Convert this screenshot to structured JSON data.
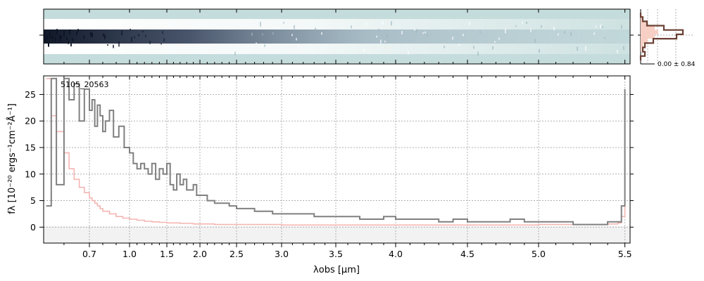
{
  "chart_data": [
    {
      "type": "heatmap",
      "panel": "2D spectrum",
      "description_visible": "dark trace along centre, strongest at blue end, fading to red",
      "colormap": [
        "#ffffff",
        "#c5dcdc",
        "#1c2540"
      ],
      "background": "#c5dcdc"
    },
    {
      "type": "line",
      "panel": "profile",
      "annotation": "0.00 ± 0.84",
      "profile_values": [
        0.0,
        0.05,
        0.15,
        0.55,
        1.0,
        0.85,
        0.3,
        0.1,
        0.05,
        0.1,
        0.0
      ],
      "model_values": [
        0.05,
        0.15,
        0.4,
        0.8,
        1.0,
        0.8,
        0.4,
        0.15,
        0.05,
        0.0,
        0.0
      ]
    },
    {
      "type": "line",
      "panel": "1D spectrum",
      "label": "5105_20563",
      "xlabel": "λobs [μm]",
      "ylabel": "fλ [10⁻²⁰ ergs⁻¹cm⁻²Å⁻¹]",
      "xtick_labels": [
        "0.7",
        "1.0",
        "1.5",
        "2.0",
        "2.5",
        "3.0",
        "3.5",
        "4.0",
        "4.5",
        "5.0",
        "5.5"
      ],
      "ytick_labels": [
        "0",
        "5",
        "10",
        "15",
        "20",
        "25"
      ],
      "yticks": [
        0,
        5,
        10,
        15,
        20,
        25
      ],
      "ylim": [
        -3,
        28.5
      ],
      "xlim": [
        0.52,
        5.53
      ],
      "grid": true,
      "series": [
        {
          "color": "#808080",
          "x": [
            0.53,
            0.55,
            0.57,
            0.6,
            0.62,
            0.64,
            0.66,
            0.68,
            0.7,
            0.72,
            0.74,
            0.76,
            0.78,
            0.8,
            0.82,
            0.85,
            0.88,
            0.92,
            0.96,
            1.0,
            1.05,
            1.1,
            1.15,
            1.2,
            1.25,
            1.3,
            1.35,
            1.4,
            1.45,
            1.5,
            1.55,
            1.6,
            1.65,
            1.7,
            1.75,
            1.8,
            1.85,
            1.9,
            1.95,
            2.0,
            2.1,
            2.2,
            2.3,
            2.4,
            2.5,
            2.6,
            2.7,
            2.8,
            2.9,
            3.0,
            3.1,
            3.2,
            3.3,
            3.4,
            3.5,
            3.6,
            3.7,
            3.8,
            3.9,
            4.0,
            4.1,
            4.2,
            4.3,
            4.4,
            4.5,
            4.6,
            4.7,
            4.8,
            4.9,
            5.0,
            5.1,
            5.2,
            5.3,
            5.4,
            5.46,
            5.48,
            5.5
          ],
          "y": [
            4,
            28,
            8,
            28,
            24,
            27,
            20,
            26,
            22,
            24,
            19,
            23,
            21,
            18,
            20,
            22,
            17,
            19,
            15,
            14,
            12,
            11,
            12,
            11,
            10,
            12,
            9,
            11,
            10,
            12,
            8,
            7,
            10,
            8,
            9,
            7,
            7,
            8,
            6,
            6,
            5,
            4.5,
            4.5,
            4,
            3.5,
            3.5,
            3,
            3,
            2.5,
            2.5,
            2.5,
            2.5,
            2,
            2,
            2,
            2,
            1.5,
            1.5,
            2,
            1.5,
            1.5,
            1.5,
            1,
            1.5,
            1,
            1,
            1,
            1.5,
            1,
            1,
            1,
            0.5,
            0.5,
            1,
            1,
            4,
            26
          ]
        },
        {
          "color": "#f4b6b2",
          "x": [
            0.53,
            0.55,
            0.57,
            0.6,
            0.62,
            0.64,
            0.66,
            0.68,
            0.7,
            0.72,
            0.74,
            0.76,
            0.78,
            0.8,
            0.85,
            0.9,
            0.95,
            1.0,
            1.1,
            1.2,
            1.3,
            1.4,
            1.5,
            1.6,
            1.7,
            1.8,
            1.9,
            2.0,
            2.2,
            2.5,
            3.0,
            3.5,
            4.0,
            4.5,
            5.0,
            5.4,
            5.46,
            5.48,
            5.5
          ],
          "y": [
            28,
            21,
            18,
            14,
            11,
            9,
            7.5,
            6.5,
            5.5,
            5,
            4.5,
            4,
            3.5,
            3,
            2.5,
            2,
            1.7,
            1.5,
            1.3,
            1.1,
            1.0,
            0.9,
            0.8,
            0.8,
            0.7,
            0.7,
            0.6,
            0.6,
            0.5,
            0.5,
            0.4,
            0.4,
            0.4,
            0.4,
            0.5,
            0.6,
            0.8,
            2,
            19
          ]
        }
      ]
    }
  ]
}
